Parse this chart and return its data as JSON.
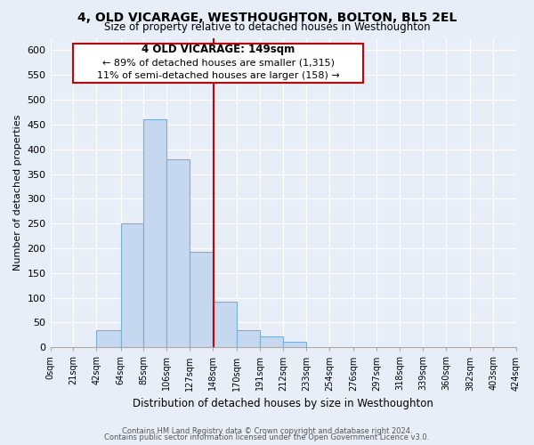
{
  "title": "4, OLD VICARAGE, WESTHOUGHTON, BOLTON, BL5 2EL",
  "subtitle": "Size of property relative to detached houses in Westhoughton",
  "xlabel": "Distribution of detached houses by size in Westhoughton",
  "ylabel": "Number of detached properties",
  "bar_color": "#c5d8f0",
  "bar_edge_color": "#7aafd4",
  "background_color": "#e8eef8",
  "grid_color": "#ffffff",
  "bin_labels": [
    "0sqm",
    "21sqm",
    "42sqm",
    "64sqm",
    "85sqm",
    "106sqm",
    "127sqm",
    "148sqm",
    "170sqm",
    "191sqm",
    "212sqm",
    "233sqm",
    "254sqm",
    "276sqm",
    "297sqm",
    "318sqm",
    "339sqm",
    "360sqm",
    "382sqm",
    "403sqm",
    "424sqm"
  ],
  "bin_edges": [
    0,
    21,
    42,
    64,
    85,
    106,
    127,
    148,
    170,
    191,
    212,
    233,
    254,
    276,
    297,
    318,
    339,
    360,
    382,
    403,
    424
  ],
  "bar_heights": [
    0,
    0,
    35,
    250,
    460,
    380,
    193,
    93,
    35,
    22,
    12,
    0,
    0,
    0,
    0,
    0,
    0,
    0,
    0,
    0
  ],
  "ylim": [
    0,
    625
  ],
  "yticks": [
    0,
    50,
    100,
    150,
    200,
    250,
    300,
    350,
    400,
    450,
    500,
    550,
    600
  ],
  "property_line_x": 149,
  "annotation_title": "4 OLD VICARAGE: 149sqm",
  "annotation_line1": "← 89% of detached houses are smaller (1,315)",
  "annotation_line2": "11% of semi-detached houses are larger (158) →",
  "annotation_box_color": "white",
  "annotation_border_color": "#cc0000",
  "property_line_color": "#cc0000",
  "footer1": "Contains HM Land Registry data © Crown copyright and database right 2024.",
  "footer2": "Contains public sector information licensed under the Open Government Licence v3.0."
}
